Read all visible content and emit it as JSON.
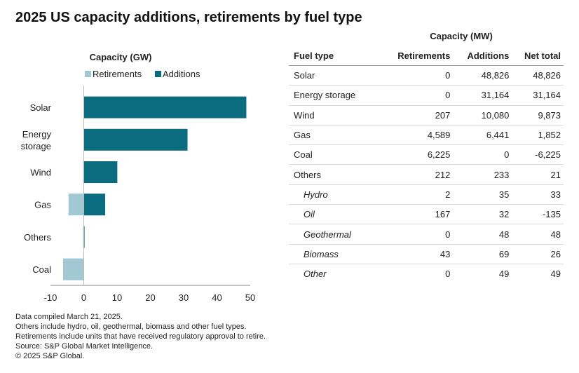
{
  "title": "2025 US capacity additions, retirements by fuel type",
  "chart_data": {
    "type": "bar",
    "orientation": "horizontal",
    "stacked": true,
    "title": "Capacity (GW)",
    "categories": [
      "Solar",
      "Energy storage",
      "Wind",
      "Gas",
      "Others",
      "Coal"
    ],
    "series": [
      {
        "name": "Retirements",
        "color": "#a1c8d3",
        "values": [
          0,
          0,
          -0.207,
          -4.589,
          -0.212,
          -6.225
        ]
      },
      {
        "name": "Additions",
        "color": "#0b6b7f",
        "values": [
          48.826,
          31.164,
          10.08,
          6.441,
          0.233,
          0
        ]
      }
    ],
    "xlim": [
      -10,
      50
    ],
    "xticks": [
      "-10",
      "0",
      "10",
      "20",
      "30",
      "40",
      "50"
    ],
    "grid": false,
    "legend": "top"
  },
  "table": {
    "group_header": "Capacity (MW)",
    "columns": [
      "Fuel type",
      "Retirements",
      "Additions",
      "Net total"
    ],
    "rows": [
      {
        "fuel": "Solar",
        "retirements": "0",
        "additions": "48,826",
        "net": "48,826",
        "sub": false
      },
      {
        "fuel": "Energy storage",
        "retirements": "0",
        "additions": "31,164",
        "net": "31,164",
        "sub": false
      },
      {
        "fuel": "Wind",
        "retirements": "207",
        "additions": "10,080",
        "net": "9,873",
        "sub": false
      },
      {
        "fuel": "Gas",
        "retirements": "4,589",
        "additions": "6,441",
        "net": "1,852",
        "sub": false
      },
      {
        "fuel": "Coal",
        "retirements": "6,225",
        "additions": "0",
        "net": "-6,225",
        "sub": false
      },
      {
        "fuel": "Others",
        "retirements": "212",
        "additions": "233",
        "net": "21",
        "sub": false
      },
      {
        "fuel": "Hydro",
        "retirements": "2",
        "additions": "35",
        "net": "33",
        "sub": true
      },
      {
        "fuel": "Oil",
        "retirements": "167",
        "additions": "32",
        "net": "-135",
        "sub": true
      },
      {
        "fuel": "Geothermal",
        "retirements": "0",
        "additions": "48",
        "net": "48",
        "sub": true
      },
      {
        "fuel": "Biomass",
        "retirements": "43",
        "additions": "69",
        "net": "26",
        "sub": true
      },
      {
        "fuel": "Other",
        "retirements": "0",
        "additions": "49",
        "net": "49",
        "sub": true
      }
    ]
  },
  "footnotes": [
    "Data compiled March 21, 2025.",
    "Others include hydro, oil, geothermal, biomass and other fuel types.",
    "Retirements include units that have received regulatory approval to retire.",
    "Source: S&P Global Market Intelligence.",
    "© 2025 S&P Global."
  ]
}
